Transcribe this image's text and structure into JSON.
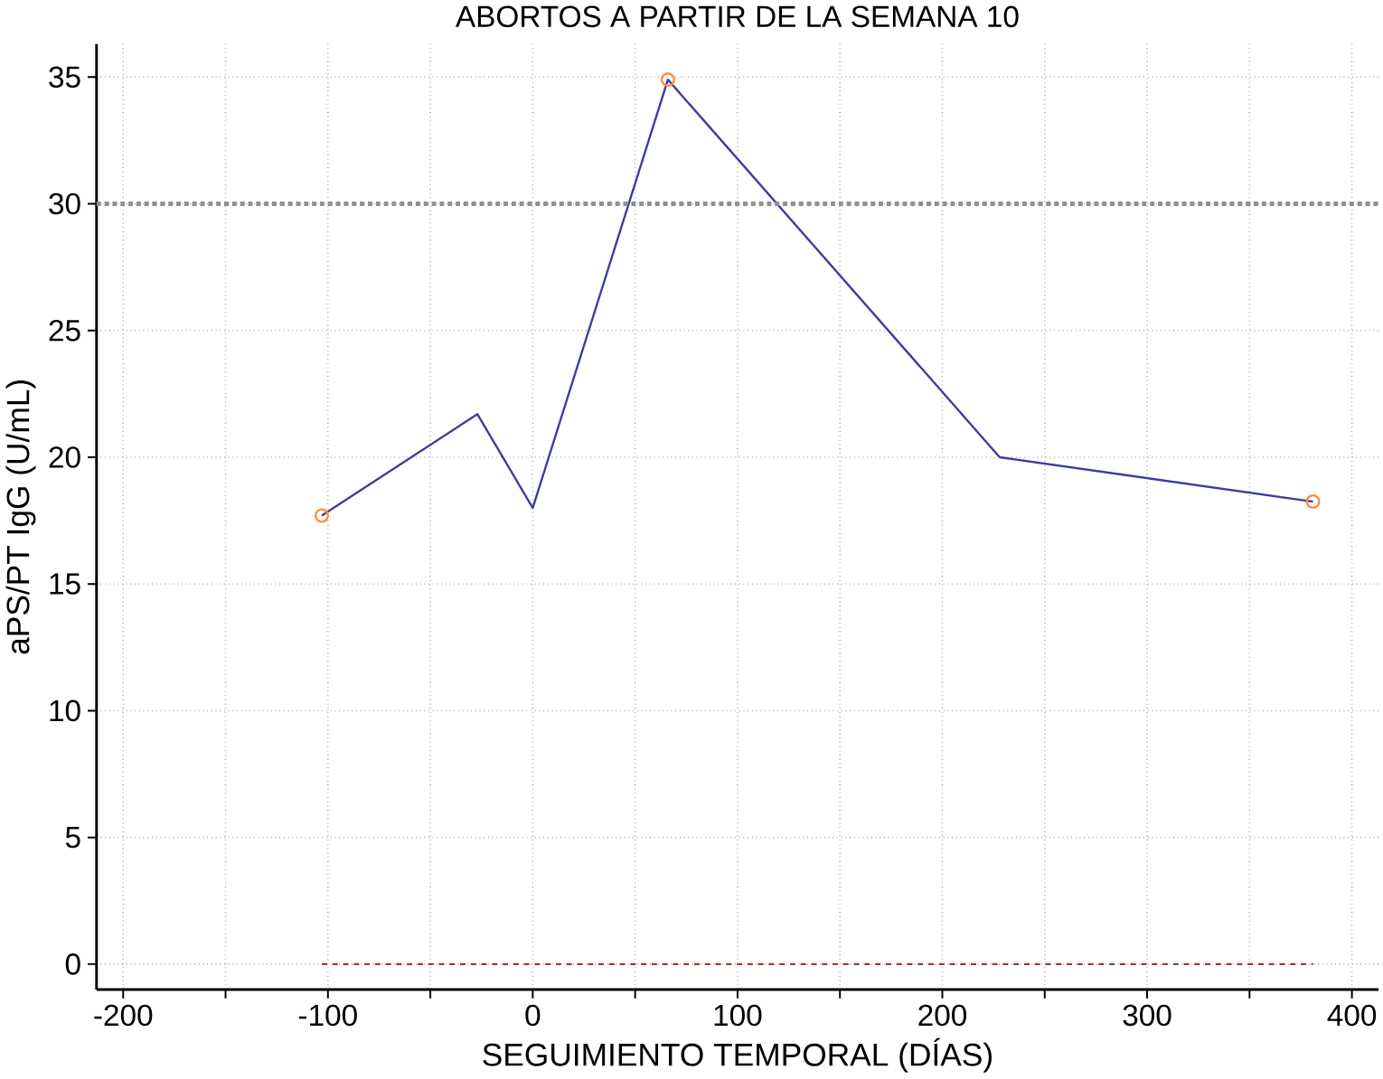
{
  "chart_data": {
    "type": "line",
    "title": "ABORTOS A PARTIR DE LA SEMANA 10",
    "xlabel": "SEGUIMIENTO TEMPORAL (DÍAS)",
    "ylabel": "aPS/PT IgG (U/mL)",
    "xlim": [
      -213,
      413
    ],
    "ylim": [
      -1,
      36.3
    ],
    "xticks": [
      -200,
      {
        "value": -150,
        "label": null
      },
      -100,
      {
        "value": -50,
        "label": null
      },
      0,
      {
        "value": 50,
        "label": null
      },
      100,
      {
        "value": 150,
        "label": null
      },
      200,
      {
        "value": 250,
        "label": null
      },
      300,
      {
        "value": 350,
        "label": null
      },
      400
    ],
    "yticks": [
      0,
      5,
      10,
      15,
      20,
      25,
      30,
      35
    ],
    "grid": true,
    "series": [
      {
        "color": "#3c3c9c",
        "x": [
          -103,
          -27,
          0,
          66,
          228,
          381
        ],
        "values": [
          17.7,
          21.7,
          18.0,
          34.9,
          20.0,
          18.25
        ],
        "marker": "none",
        "line_style": "solid"
      },
      {
        "type": "line",
        "color": "#b03030",
        "x": [
          -103,
          381
        ],
        "values": [
          0,
          0
        ],
        "marker": "none",
        "line_style": "dashed"
      },
      {
        "type": "scatter",
        "color": "#ff8c3c",
        "x": [
          -103,
          66,
          381
        ],
        "values": [
          17.7,
          34.9,
          18.25
        ],
        "marker": "circle"
      }
    ],
    "ref_lines": [
      {
        "axis": "y",
        "value": 30,
        "color": "#909090",
        "line_style": "dotted"
      }
    ]
  }
}
